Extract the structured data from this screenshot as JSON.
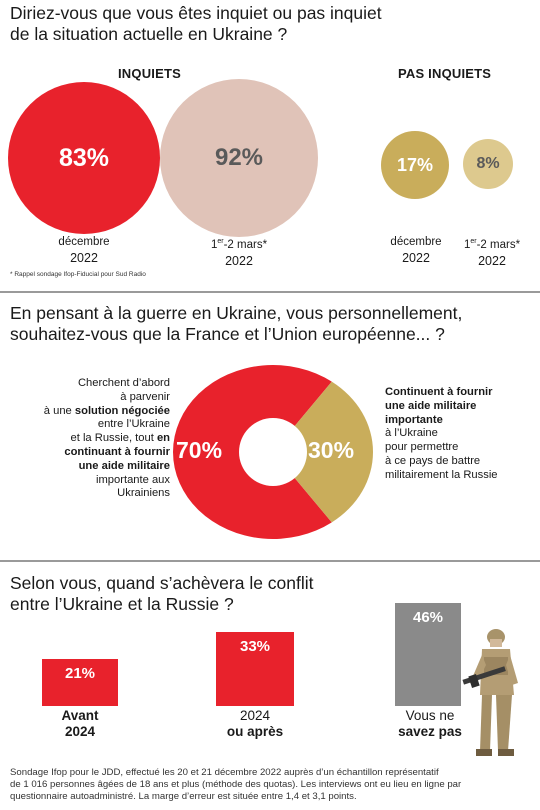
{
  "section1": {
    "question_line1": "Diriez-vous que vous êtes inquiet ou pas inquiet",
    "question_line2": "de la situation actuelle en Ukraine ?",
    "group_worried": "INQUIETS",
    "group_not_worried": "PAS INQUIETS",
    "footnote": "* Rappel sondage Ifop-Fiducial pour Sud Radio",
    "label_dec": "décembre",
    "label_mar_sup": "er",
    "label_mar_pre": "1",
    "label_mar_post": "-2 mars*",
    "year": "2022"
  },
  "section2": {
    "question_line1": "En pensant à la guerre en Ukraine, vous personnellement,",
    "question_line2": "souhaitez-vous que la France et l’Union européenne... ?",
    "left_desc": {
      "l1": "Cherchent d’abord",
      "l2": "à parvenir",
      "l3a": "à une ",
      "l3b": "solution négociée",
      "l4": "entre l’Ukraine",
      "l5a": "et la Russie, tout ",
      "l5b": "en",
      "l6": "continuant à fournir",
      "l7": "une aide militaire",
      "l8": "importante aux",
      "l9": "Ukrainiens"
    },
    "right_desc": {
      "l1": "Continuent à fournir",
      "l2": "une aide militaire",
      "l3": "importante",
      "l4": "à l’Ukraine",
      "l5": "pour permettre",
      "l6": "à ce pays de battre",
      "l7": "militairement la Russie"
    }
  },
  "section3": {
    "question_line1": "Selon vous, quand s’achèvera le conflit",
    "question_line2": "entre l’Ukraine et la Russie ?",
    "cat1_l1": "Avant",
    "cat1_l2": "2024",
    "cat2_l1": "2024",
    "cat2_l2": "ou après",
    "cat3_l1": "Vous ne",
    "cat3_l2": "savez pas"
  },
  "source": {
    "line1": "Sondage Ifop pour le JDD, effectué les 20 et 21 décembre 2022 auprès d’un échantillon représentatif",
    "line2": "de 1 016 personnes âgées de 18 ans et plus (méthode des quotas). Les interviews ont eu lieu en ligne par",
    "line3": "questionnaire autoadministré. La marge d’erreur est située entre 1,4 et 3,1 points."
  },
  "colors": {
    "red": "#e8222c",
    "pink": "#e0c3b8",
    "gold": "#c9ad5b",
    "gold_light": "#ddc98e",
    "grey": "#8a8a8a"
  },
  "chart_data": [
    {
      "type": "bubble",
      "title": "Diriez-vous que vous êtes inquiet ou pas inquiet de la situation actuelle en Ukraine ?",
      "categories": [
        "décembre 2022",
        "1er-2 mars* 2022"
      ],
      "series": [
        {
          "name": "INQUIETS",
          "values": [
            83,
            92
          ],
          "labels": [
            "83%",
            "92%"
          ]
        },
        {
          "name": "PAS INQUIETS",
          "values": [
            17,
            8
          ],
          "labels": [
            "17%",
            "8%"
          ]
        }
      ]
    },
    {
      "type": "pie",
      "title": "En pensant à la guerre en Ukraine, vous personnellement, souhaitez-vous que la France et l’Union européenne... ?",
      "categories": [
        "Cherchent d’abord à parvenir à une solution négociée",
        "Continuent à fournir une aide militaire importante"
      ],
      "values": [
        70,
        30
      ],
      "labels": [
        "70%",
        "30%"
      ]
    },
    {
      "type": "bar",
      "title": "Selon vous, quand s’achèvera le conflit entre l’Ukraine et la Russie ?",
      "categories": [
        "Avant 2024",
        "2024 ou après",
        "Vous ne savez pas"
      ],
      "values": [
        21,
        33,
        46
      ],
      "labels": [
        "21%",
        "33%",
        "46%"
      ]
    }
  ]
}
